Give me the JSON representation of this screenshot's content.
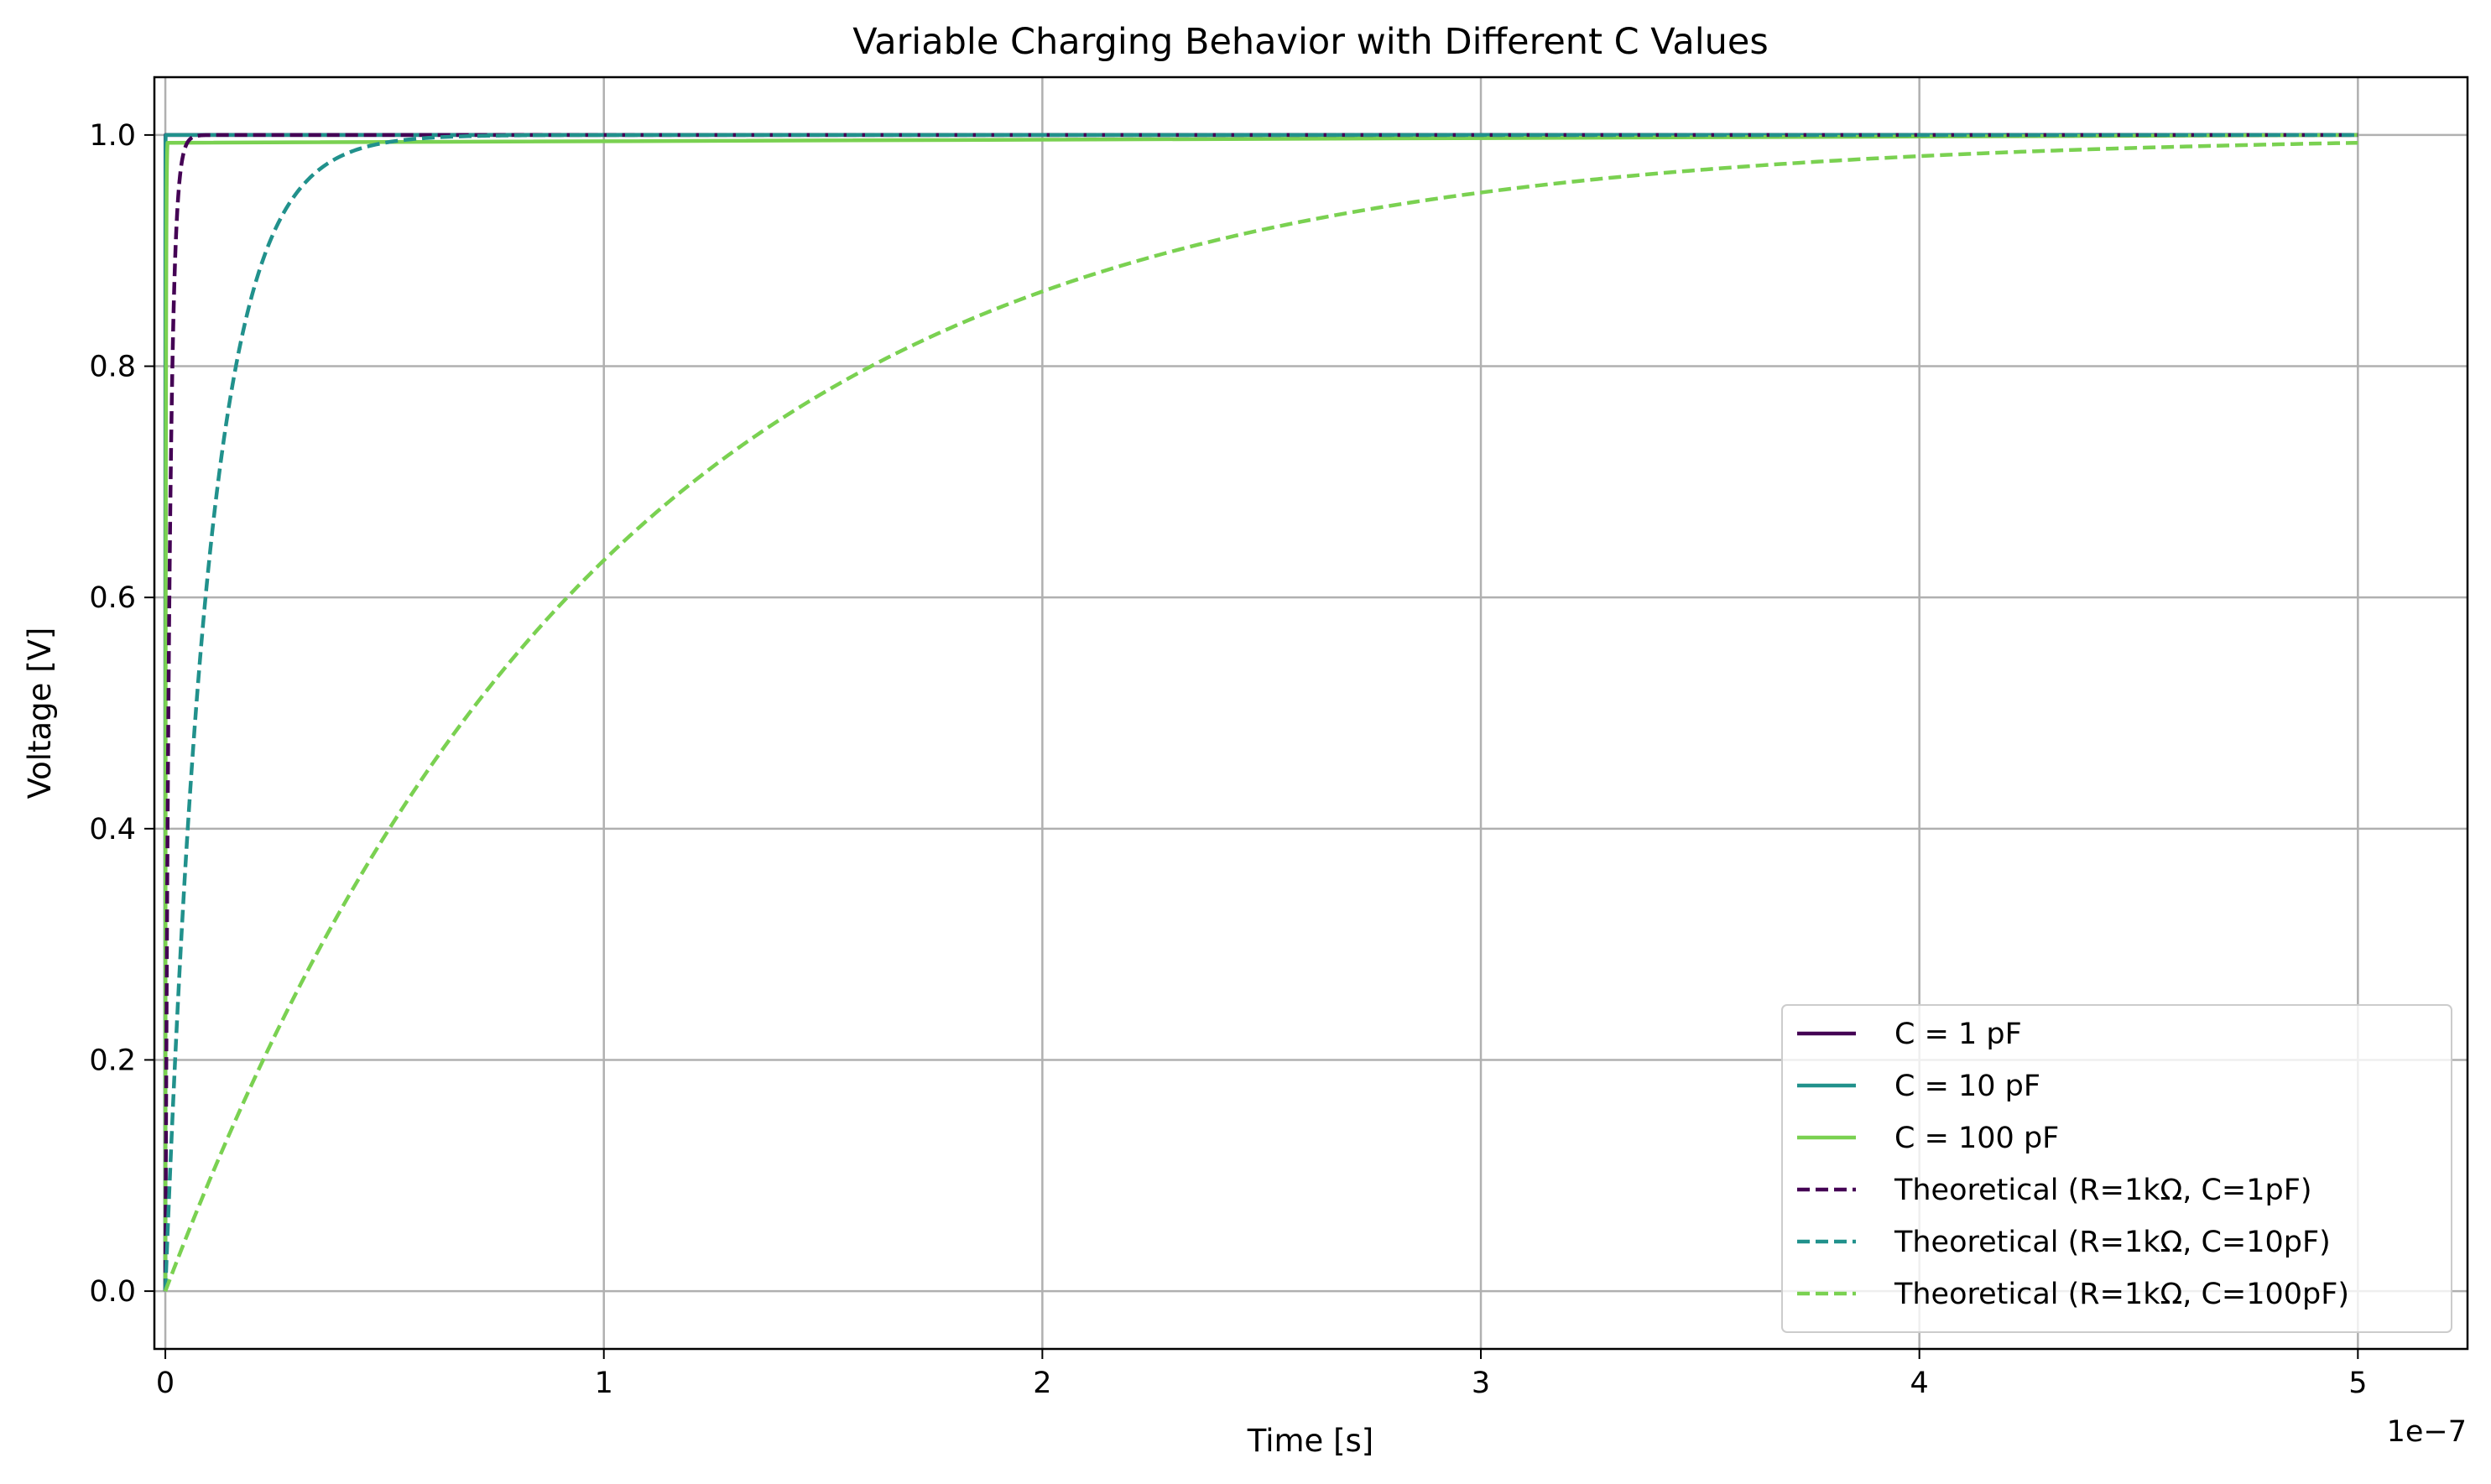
{
  "chart_data": {
    "type": "line",
    "title": "Variable Charging Behavior with Different C Values",
    "xlabel": "Time [s]",
    "ylabel": "Voltage [V]",
    "x_offset_label": "1e−7",
    "xlim": [
      -2.5e-09,
      5.25e-07
    ],
    "ylim": [
      -0.05,
      1.05
    ],
    "x_ticks": [
      0,
      1e-07,
      2e-07,
      3e-07,
      4e-07,
      5e-07
    ],
    "x_tick_labels": [
      "0",
      "1",
      "2",
      "3",
      "4",
      "5"
    ],
    "y_ticks": [
      0.0,
      0.2,
      0.4,
      0.6,
      0.8,
      1.0
    ],
    "y_tick_labels": [
      "0.0",
      "0.2",
      "0.4",
      "0.6",
      "0.8",
      "1.0"
    ],
    "grid": true,
    "legend_position": "bottom-right",
    "x_range": [
      0,
      5e-07
    ],
    "series": [
      {
        "name": "C = 1 pF",
        "color": "#440154",
        "style": "solid",
        "model": "step",
        "tau": 1e-12,
        "knee_x": 5e-10
      },
      {
        "name": "C = 10 pF",
        "color": "#21918c",
        "style": "solid",
        "model": "step",
        "tau": 1e-11,
        "knee_x": 5e-10
      },
      {
        "name": "C = 100 pF",
        "color": "#7ad151",
        "style": "solid",
        "model": "step",
        "tau": 1e-10,
        "knee_x": 5e-10
      },
      {
        "name": "Theoretical (R=1kΩ, C=1pF)",
        "color": "#440154",
        "style": "dashed",
        "model": "rc",
        "tau": 1e-09
      },
      {
        "name": "Theoretical (R=1kΩ, C=10pF)",
        "color": "#21918c",
        "style": "dashed",
        "model": "rc",
        "tau": 1e-08
      },
      {
        "name": "Theoretical (R=1kΩ, C=100pF)",
        "color": "#7ad151",
        "style": "dashed",
        "model": "rc",
        "tau": 1e-07
      }
    ]
  }
}
